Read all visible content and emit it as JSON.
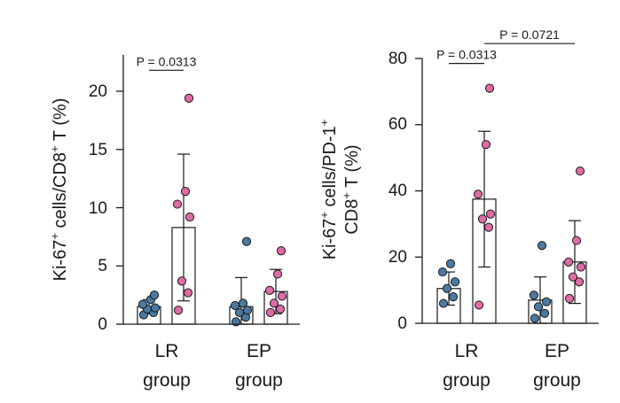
{
  "colors": {
    "blue": "#4a7aa3",
    "pink": "#e06aa8",
    "bar_fill": "#ffffff",
    "stroke": "#1a1a1a"
  },
  "chart_data": [
    {
      "type": "bar",
      "title": "",
      "ylabel": {
        "pre": "Ki-67",
        "sup1": "+",
        "mid": " cells/CD8",
        "sup2": "+",
        "post": " T (%)"
      },
      "ylim": [
        0,
        22
      ],
      "yticks": [
        0,
        5,
        10,
        15,
        20
      ],
      "groups": [
        {
          "line1": "LR",
          "line2": "group"
        },
        {
          "line1": "EP",
          "line2": "group"
        }
      ],
      "series": [
        {
          "name": "blue",
          "color": "#4a7aa3",
          "values": [
            1.5,
            1.5
          ],
          "sd": [
            0.6,
            2.5
          ],
          "points": [
            [
              0.8,
              1.0,
              1.3,
              1.4,
              1.7,
              2.1,
              2.5
            ],
            [
              0.2,
              0.6,
              1.0,
              1.2,
              1.6,
              1.8,
              7.1
            ]
          ]
        },
        {
          "name": "pink",
          "color": "#e06aa8",
          "values": [
            8.3,
            2.8
          ],
          "sd": [
            6.3,
            1.9
          ],
          "points": [
            [
              1.2,
              2.7,
              3.7,
              9.2,
              10.3,
              11.4,
              19.4
            ],
            [
              1.0,
              1.3,
              1.8,
              2.4,
              2.9,
              4.3,
              6.3
            ]
          ]
        }
      ],
      "annotations": [
        {
          "label": "P = 0.0313",
          "from": 0,
          "to": 1,
          "y": 21.8
        }
      ]
    },
    {
      "type": "bar",
      "title": "",
      "ylabel": {
        "line1": {
          "pre": "Ki-67",
          "sup1": "+",
          "post": " cells/PD-1",
          "sup2": "+"
        },
        "line2": {
          "pre": "CD8",
          "sup": "+",
          "post": " T (%)"
        }
      },
      "ylim": [
        0,
        80
      ],
      "yticks": [
        0,
        20,
        40,
        60,
        80
      ],
      "groups": [
        {
          "line1": "LR",
          "line2": "group"
        },
        {
          "line1": "EP",
          "line2": "group"
        }
      ],
      "series": [
        {
          "name": "blue",
          "color": "#4a7aa3",
          "values": [
            10.5,
            7.0
          ],
          "sd": [
            5.0,
            7.0
          ],
          "points": [
            [
              6.0,
              8.0,
              10.5,
              12.5,
              15.5,
              18.0
            ],
            [
              1.5,
              3.0,
              5.0,
              6.5,
              8.5,
              23.5
            ]
          ]
        },
        {
          "name": "pink",
          "color": "#e06aa8",
          "values": [
            37.5,
            18.5
          ],
          "sd": [
            20.5,
            12.5
          ],
          "points": [
            [
              5.5,
              29.0,
              31.5,
              33.0,
              39.0,
              54.0,
              71.0
            ],
            [
              7.5,
              12.5,
              14.0,
              17.0,
              18.5,
              25.0,
              46.0
            ]
          ]
        }
      ],
      "annotations": [
        {
          "label": "P = 0.0313",
          "from": 0,
          "to": 1,
          "y": 78.5
        },
        {
          "label": "P = 0.0721",
          "from": 1,
          "to": 3,
          "y": 84.5
        }
      ]
    }
  ]
}
